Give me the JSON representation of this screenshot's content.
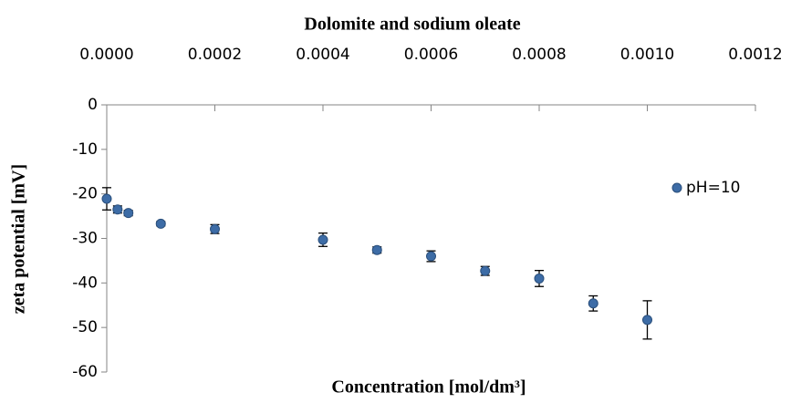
{
  "chart_data": {
    "type": "scatter",
    "title": "Dolomite  and sodium oleate",
    "x_label": "Concentration [mol/dm³]",
    "y_label": "zeta potential [mV]",
    "x_axis_position": "top",
    "legend": "right",
    "series": [
      {
        "name": "pH=10",
        "color": "#3d6ca6",
        "x": [
          0,
          2e-05,
          4e-05,
          0.0001,
          0.0002,
          0.0004,
          0.0005,
          0.0006,
          0.0007,
          0.0008,
          0.0009,
          0.001
        ],
        "values": [
          -21.1,
          -23.5,
          -24.3,
          -26.7,
          -27.9,
          -30.3,
          -32.6,
          -34.0,
          -37.3,
          -39.0,
          -44.6,
          -48.3
        ],
        "errors": [
          2.5,
          0.8,
          0.6,
          0.5,
          1.0,
          1.5,
          0.7,
          1.2,
          1.0,
          1.8,
          1.7,
          4.3
        ]
      }
    ],
    "xlim": [
      0,
      0.0012
    ],
    "xticks": [
      {
        "value": 0,
        "label": "0.0000"
      },
      {
        "value": 0.0002,
        "label": "0.0002"
      },
      {
        "value": 0.0004,
        "label": "0.0004"
      },
      {
        "value": 0.0006,
        "label": "0.0006"
      },
      {
        "value": 0.0008,
        "label": "0.0008"
      },
      {
        "value": 0.001,
        "label": "0.0010"
      },
      {
        "value": 0.0012,
        "label": "0.0012"
      }
    ],
    "ylim": [
      -60,
      0
    ],
    "yticks": [
      0,
      -10,
      -20,
      -30,
      -40,
      -50,
      -60
    ]
  }
}
